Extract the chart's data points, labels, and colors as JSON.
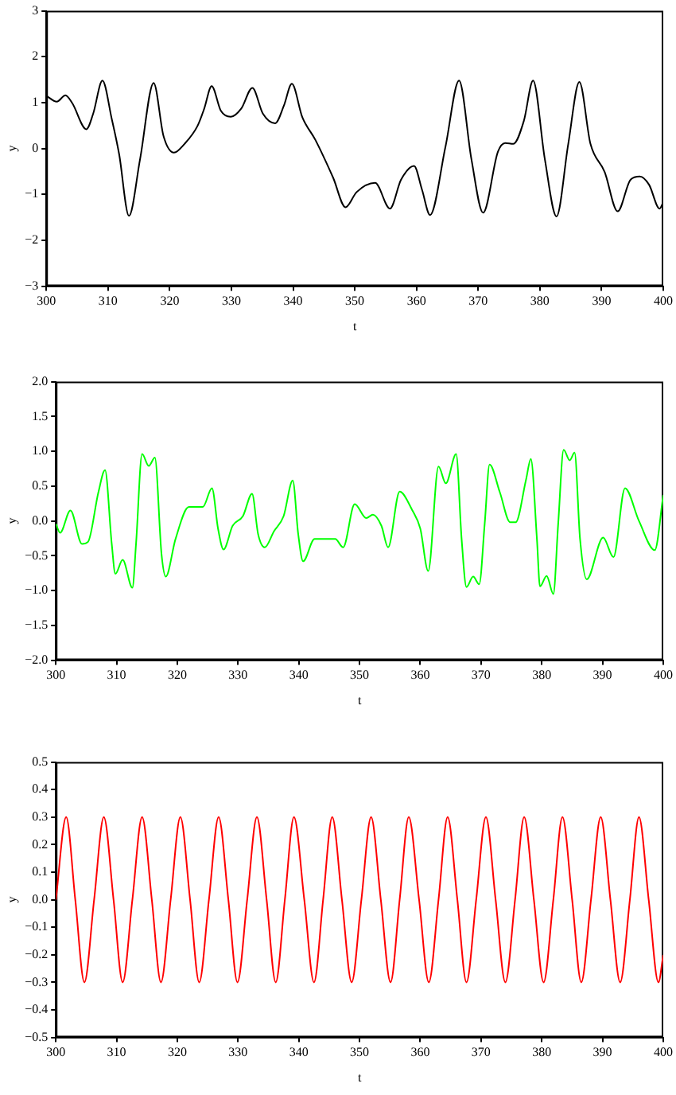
{
  "chart_data": [
    {
      "type": "line",
      "xlabel": "t",
      "ylabel": "y",
      "xlim": [
        300,
        400
      ],
      "ylim": [
        -3,
        3
      ],
      "xticks": [
        300,
        310,
        320,
        330,
        340,
        350,
        360,
        370,
        380,
        390,
        400
      ],
      "yticks": [
        {
          "value": -3,
          "label": "−3"
        },
        {
          "value": -2,
          "label": "−2"
        },
        {
          "value": -1,
          "label": "−1"
        },
        0,
        1,
        2,
        3
      ],
      "grid": false,
      "legend": false,
      "marker": "none",
      "line_style": "solid",
      "series": [
        {
          "color": "#000000",
          "x": [
            300,
            301.7,
            303.1,
            304.2,
            306.5,
            307.6,
            309.1,
            310.6,
            311.8,
            313.4,
            315.2,
            317.4,
            319.0,
            320.7,
            322.4,
            324.5,
            325.6,
            326.8,
            328.3,
            329.9,
            331.6,
            333.4,
            335.1,
            337.1,
            338.5,
            339.8,
            341.5,
            343.6,
            346.5,
            348.5,
            350.3,
            353.3,
            355.7,
            357.5,
            359.6,
            360.9,
            362.2,
            364.7,
            366.9,
            368.9,
            370.8,
            373.2,
            374.4,
            375.7,
            377.4,
            378.9,
            380.8,
            382.7,
            384.6,
            386.4,
            388.2,
            390.5,
            392.6,
            394.7,
            396.2,
            397.7,
            399.4,
            400
          ],
          "values": [
            1.15,
            1.02,
            1.16,
            0.99,
            0.42,
            0.76,
            1.48,
            0.65,
            -0.12,
            -1.47,
            -0.23,
            1.43,
            0.27,
            -0.09,
            0.1,
            0.49,
            0.87,
            1.36,
            0.82,
            0.69,
            0.87,
            1.32,
            0.76,
            0.55,
            0.93,
            1.41,
            0.68,
            0.19,
            -0.64,
            -1.28,
            -0.95,
            -0.75,
            -1.31,
            -0.68,
            -0.38,
            -0.9,
            -1.45,
            0.04,
            1.48,
            -0.23,
            -1.4,
            -0.07,
            0.12,
            0.1,
            0.6,
            1.48,
            -0.23,
            -1.48,
            0.1,
            1.45,
            0.1,
            -0.51,
            -1.37,
            -0.68,
            -0.61,
            -0.79,
            -1.31,
            -1.17
          ]
        }
      ]
    },
    {
      "type": "line",
      "xlabel": "t",
      "ylabel": "y",
      "xlim": [
        300,
        400
      ],
      "ylim": [
        -2,
        2
      ],
      "xticks": [
        300,
        310,
        320,
        330,
        340,
        350,
        360,
        370,
        380,
        390,
        400
      ],
      "yticks": [
        {
          "value": -2,
          "label": "−2.0"
        },
        {
          "value": -1.5,
          "label": "−1.5"
        },
        {
          "value": -1,
          "label": "−1.0"
        },
        {
          "value": -0.5,
          "label": "−0.5"
        },
        {
          "value": 0,
          "label": "0.0"
        },
        0.5,
        {
          "value": 1,
          "label": "1.0"
        },
        1.5,
        {
          "value": 2,
          "label": "2.0"
        }
      ],
      "grid": false,
      "legend": false,
      "marker": "none",
      "line_style": "solid",
      "series": [
        {
          "color": "#00ff00",
          "x": [
            300,
            300.7,
            302.4,
            304.3,
            305.3,
            307.0,
            308.1,
            309.2,
            309.8,
            311.0,
            312.6,
            313.2,
            314.2,
            315.3,
            316.3,
            317.4,
            318.1,
            319.7,
            321.9,
            324.2,
            325.7,
            326.7,
            327.6,
            329.1,
            330.8,
            332.3,
            333.3,
            334.4,
            335.9,
            337.5,
            339.0,
            339.9,
            340.7,
            342.6,
            346.0,
            347.3,
            349.2,
            351.1,
            352.2,
            353.6,
            354.7,
            356.6,
            358.7,
            360.0,
            361.3,
            363.0,
            364.2,
            365.9,
            366.8,
            367.6,
            368.7,
            369.7,
            370.6,
            371.4,
            373.1,
            374.8,
            375.7,
            377.4,
            378.2,
            379.2,
            379.7,
            380.8,
            381.9,
            382.7,
            383.6,
            384.6,
            385.4,
            386.3,
            387.4,
            390.1,
            391.8,
            393.7,
            396.0,
            398.6,
            400
          ],
          "values": [
            -0.04,
            -0.17,
            0.15,
            -0.33,
            -0.3,
            0.41,
            0.73,
            -0.33,
            -0.76,
            -0.56,
            -0.96,
            -0.33,
            0.96,
            0.79,
            0.91,
            -0.48,
            -0.8,
            -0.26,
            0.2,
            0.2,
            0.47,
            -0.11,
            -0.41,
            -0.07,
            0.07,
            0.39,
            -0.19,
            -0.38,
            -0.15,
            0.07,
            0.58,
            -0.19,
            -0.58,
            -0.26,
            -0.26,
            -0.38,
            0.24,
            0.04,
            0.09,
            -0.07,
            -0.38,
            0.42,
            0.15,
            -0.11,
            -0.72,
            0.78,
            0.54,
            0.96,
            -0.26,
            -0.95,
            -0.8,
            -0.91,
            -0.04,
            0.81,
            0.41,
            -0.02,
            -0.02,
            0.59,
            0.89,
            -0.26,
            -0.94,
            -0.79,
            -1.05,
            -0.04,
            1.02,
            0.87,
            0.98,
            -0.26,
            -0.84,
            -0.24,
            -0.52,
            0.47,
            0.0,
            -0.42,
            0.37
          ]
        }
      ]
    },
    {
      "type": "line",
      "xlabel": "t",
      "ylabel": "y",
      "xlim": [
        300,
        400
      ],
      "ylim": [
        -0.5,
        0.5
      ],
      "xticks": [
        300,
        310,
        320,
        330,
        340,
        350,
        360,
        370,
        380,
        390,
        400
      ],
      "yticks": [
        {
          "value": -0.5,
          "label": "−0.5"
        },
        {
          "value": -0.4,
          "label": "−0.4"
        },
        {
          "value": -0.3,
          "label": "−0.3"
        },
        {
          "value": -0.2,
          "label": "−0.2"
        },
        {
          "value": -0.1,
          "label": "−0.1"
        },
        {
          "value": 0,
          "label": "0.0"
        },
        0.1,
        0.2,
        0.3,
        0.4,
        0.5
      ],
      "grid": false,
      "legend": false,
      "marker": "none",
      "line_style": "solid",
      "series": [
        {
          "color": "#ff0000",
          "x": [
            300,
            301.7,
            303.2,
            304.7,
            306.3,
            307.9,
            309.5,
            311.0,
            312.6,
            314.2,
            315.8,
            317.3,
            318.9,
            320.5,
            322.1,
            323.6,
            325.2,
            326.8,
            328.4,
            329.9,
            331.5,
            333.1,
            334.7,
            336.2,
            337.7,
            339.2,
            340.9,
            342.5,
            344.0,
            345.5,
            347.1,
            348.7,
            350.3,
            351.9,
            353.5,
            355.1,
            356.6,
            358.1,
            359.8,
            361.4,
            363.0,
            364.5,
            366.1,
            367.6,
            369.2,
            370.8,
            372.4,
            374.0,
            375.6,
            377.1,
            378.7,
            380.3,
            381.9,
            383.4,
            385.0,
            386.5,
            388.1,
            389.7,
            391.3,
            392.9,
            394.5,
            396.0,
            397.6,
            399.2,
            400
          ],
          "values": [
            0,
            0.3,
            0,
            -0.3,
            0,
            0.3,
            0,
            -0.3,
            0,
            0.3,
            0,
            -0.3,
            0,
            0.3,
            0,
            -0.3,
            0,
            0.3,
            0,
            -0.3,
            0,
            0.3,
            0,
            -0.3,
            0,
            0.3,
            0,
            -0.3,
            0,
            0.3,
            0,
            -0.3,
            0,
            0.3,
            0,
            -0.3,
            0,
            0.3,
            0,
            -0.3,
            0,
            0.3,
            0,
            -0.3,
            0,
            0.3,
            0,
            -0.3,
            0,
            0.3,
            0,
            -0.3,
            0,
            0.3,
            0,
            -0.3,
            0,
            0.3,
            0,
            -0.3,
            0,
            0.3,
            0,
            -0.3,
            -0.2
          ]
        }
      ]
    }
  ]
}
